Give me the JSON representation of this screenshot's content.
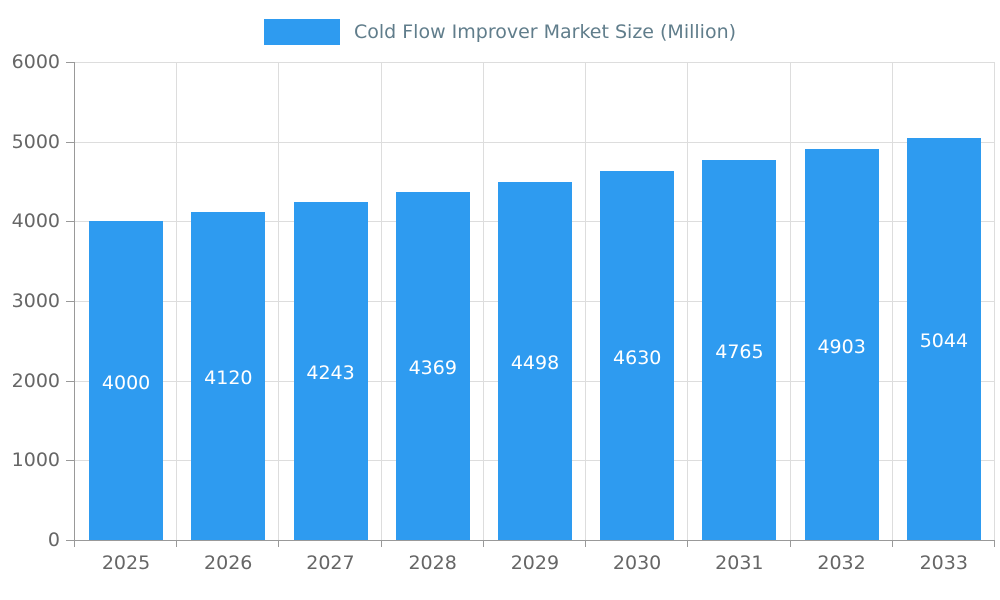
{
  "colors": {
    "bar": "#2E9BF0",
    "legend_text": "#607D8B",
    "axis_text": "#666666",
    "grid_line": "#DDDDDD",
    "axis_line": "#999999",
    "bar_label_text": "#FFFFFF"
  },
  "legend": {
    "label": "Cold Flow Improver Market Size (Million)",
    "swatch": "bar-color"
  },
  "chart_data": {
    "type": "bar",
    "title": "Cold Flow Improver Market Size (Million)",
    "categories": [
      "2025",
      "2026",
      "2027",
      "2028",
      "2029",
      "2030",
      "2031",
      "2032",
      "2033"
    ],
    "values": [
      4000,
      4120,
      4243,
      4369,
      4498,
      4630,
      4765,
      4903,
      5044
    ],
    "xlabel": "",
    "ylabel": "",
    "ylim": [
      0,
      6000
    ],
    "ytick_step": 1000,
    "yticks": [
      0,
      1000,
      2000,
      3000,
      4000,
      5000,
      6000
    ],
    "grid": true,
    "legend_position": "top",
    "bar_labels": true,
    "bar_label_position": "middle"
  }
}
